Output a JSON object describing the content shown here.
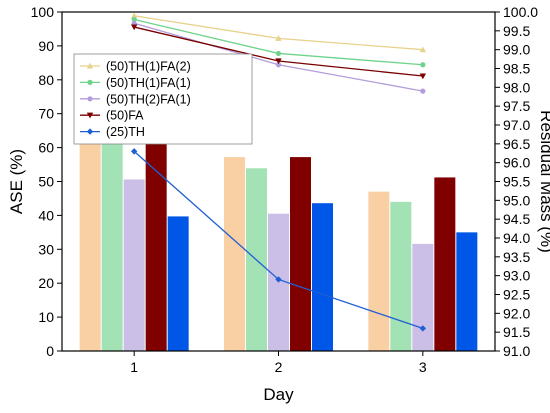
{
  "chart_data": {
    "type": "bar",
    "xlabel": "Day",
    "ylabel": "ASE (%)",
    "y2label": "Residual Mass (%)",
    "categories": [
      "1",
      "2",
      "3"
    ],
    "ylim": [
      0,
      100
    ],
    "y2lim": [
      91.0,
      100.0
    ],
    "yticks": [
      "0",
      "10",
      "20",
      "30",
      "40",
      "50",
      "60",
      "70",
      "80",
      "90",
      "100"
    ],
    "y2ticks": [
      "91.0",
      "91.5",
      "92.0",
      "92.5",
      "93.0",
      "93.5",
      "94.0",
      "94.5",
      "95.0",
      "95.5",
      "96.0",
      "96.5",
      "97.0",
      "97.5",
      "98.0",
      "98.5",
      "99.0",
      "99.5",
      "100.0"
    ],
    "bar_series": [
      {
        "color": "#f9cfa4",
        "values": [
          62.3,
          57.2,
          47.0
        ]
      },
      {
        "color": "#a2e2b4",
        "values": [
          61.5,
          53.9,
          44.0
        ]
      },
      {
        "color": "#cbbfe7",
        "values": [
          50.6,
          40.5,
          31.6
        ]
      },
      {
        "color": "#800000",
        "values": [
          61.6,
          57.2,
          51.2
        ]
      },
      {
        "color": "#0056e6",
        "values": [
          39.7,
          43.6,
          35.0
        ]
      }
    ],
    "line_series": [
      {
        "name": "(50)TH(1)FA(2)",
        "color": "#e6d28a",
        "marker": "triangle-up",
        "values": [
          99.9,
          99.3,
          99.0
        ]
      },
      {
        "name": "(50)TH(1)FA(1)",
        "color": "#6fd38c",
        "marker": "circle",
        "values": [
          99.8,
          98.9,
          98.6
        ]
      },
      {
        "name": "(50)TH(2)FA(1)",
        "color": "#b39ddb",
        "marker": "circle",
        "values": [
          99.7,
          98.6,
          97.9
        ]
      },
      {
        "name": "(50)FA",
        "color": "#7a0000",
        "marker": "triangle-down",
        "values": [
          99.6,
          98.7,
          98.3
        ]
      },
      {
        "name": "(25)TH",
        "color": "#1f5fd6",
        "marker": "diamond",
        "values": [
          96.3,
          92.9,
          91.6
        ]
      }
    ],
    "legend_position": "top-left",
    "grid": false
  }
}
